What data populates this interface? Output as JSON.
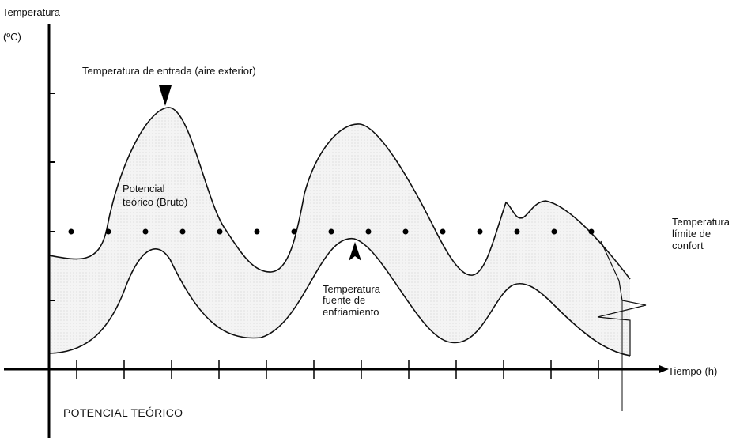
{
  "diagram": {
    "y_axis_title_line1": "Temperatura",
    "y_axis_title_line2": "(ºC)",
    "x_axis_title": "Tiempo (h)",
    "caption": "POTENCIAL TEÓRICO",
    "labels": {
      "inlet": "Temperatura de entrada (aire exterior)",
      "potential_line1": "Potencial",
      "potential_line2": "teórico (Bruto)",
      "comfort_line1": "Temperatura",
      "comfort_line2": "límite  de",
      "comfort_line3": "confort",
      "source_line1": "Temperatura",
      "source_line2": "fuente de",
      "source_line3": "enfriamiento"
    },
    "colors": {
      "band_fill": "#efefef",
      "stroke": "#111111",
      "background": "#ffffff"
    }
  }
}
